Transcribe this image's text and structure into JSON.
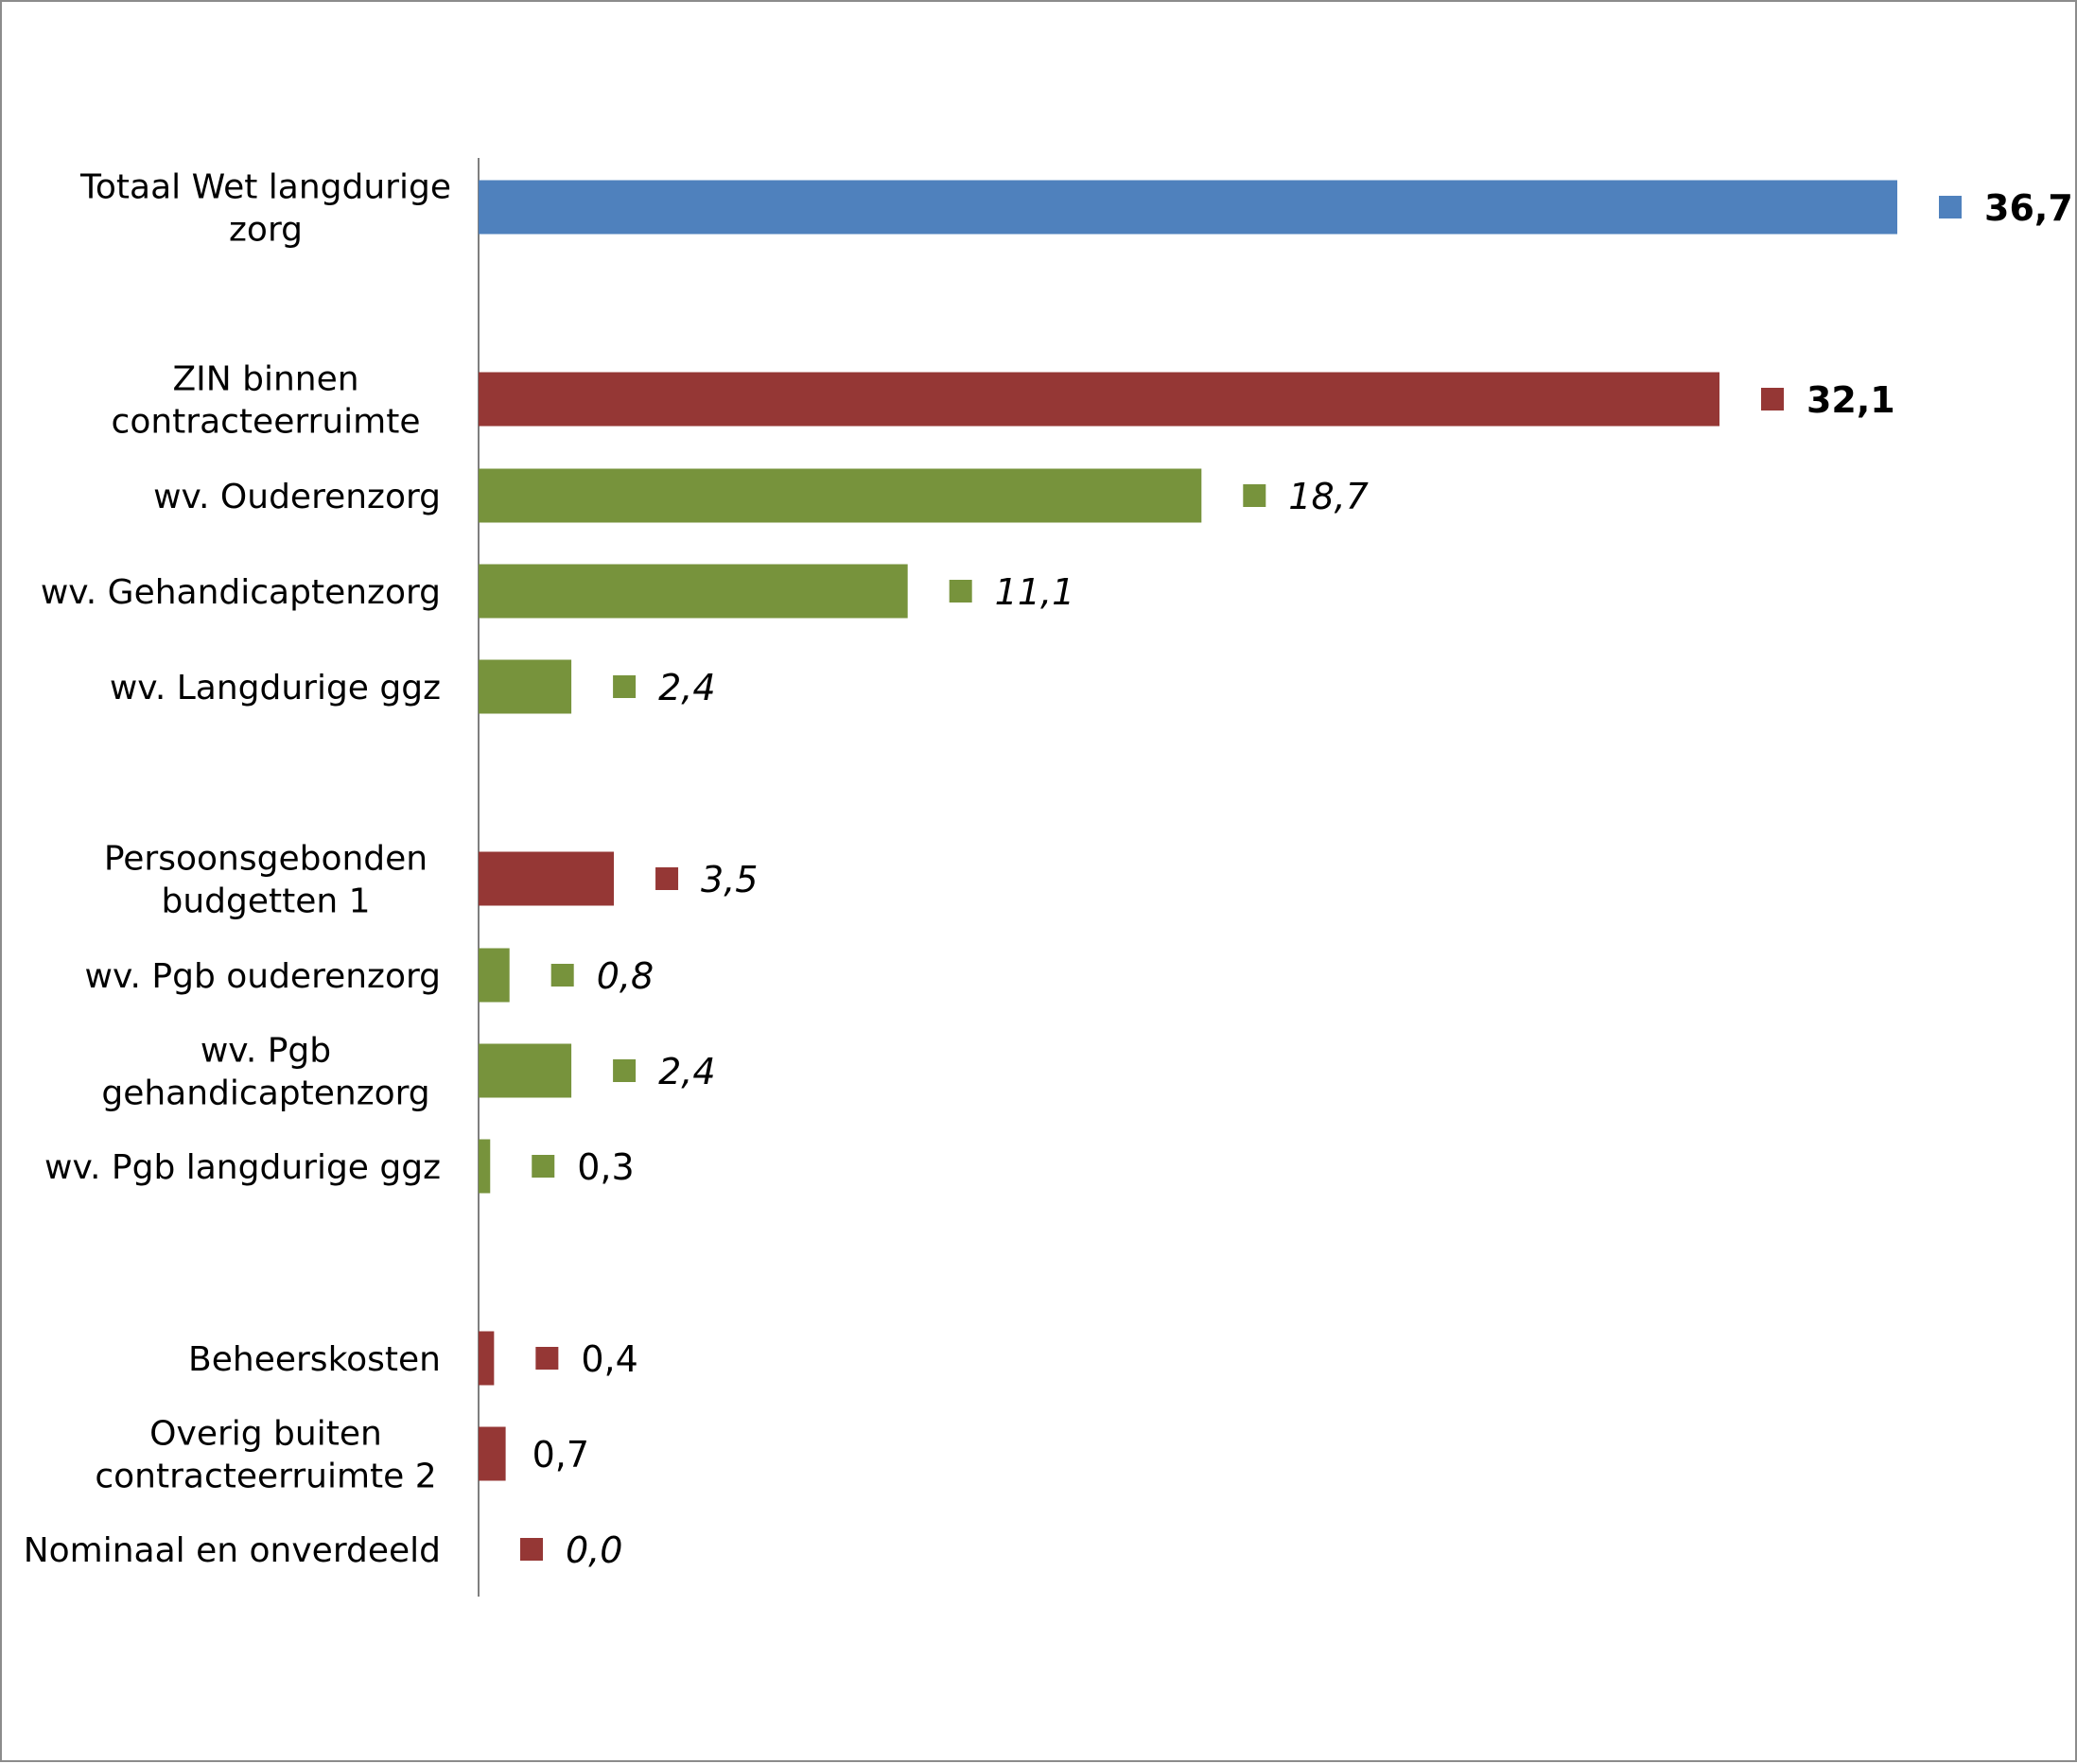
{
  "colors": {
    "total": "#4F81BD",
    "main": "#953735",
    "sub": "#77933C",
    "axis": "#7f7f7f"
  },
  "chart_data": {
    "type": "bar",
    "orientation": "horizontal",
    "title": "",
    "xlabel": "",
    "ylabel": "",
    "xlim": [
      0,
      36.7
    ],
    "grid": false,
    "legend": "none",
    "bars": [
      {
        "label": [
          "Totaal Wet langdurige",
          "zorg"
        ],
        "value": 36.7,
        "display": "36,7",
        "kind": "total",
        "style": "bold",
        "marker": true
      },
      {
        "label": [
          "ZIN binnen",
          "contracteerruimte"
        ],
        "value": 32.1,
        "display": "32,1",
        "kind": "main",
        "style": "bold",
        "marker": true
      },
      {
        "label": [
          "wv. Ouderenzorg"
        ],
        "value": 18.7,
        "display": "18,7",
        "kind": "sub",
        "style": "italic",
        "marker": true
      },
      {
        "label": [
          "wv. Gehandicaptenzorg"
        ],
        "value": 11.1,
        "display": "11,1",
        "kind": "sub",
        "style": "italic",
        "marker": true
      },
      {
        "label": [
          "wv. Langdurige ggz"
        ],
        "value": 2.4,
        "display": "2,4",
        "kind": "sub",
        "style": "italic",
        "marker": true
      },
      {
        "label": [
          "Persoonsgebonden",
          "budgetten 1"
        ],
        "value": 3.5,
        "display": "3,5",
        "kind": "main",
        "style": "italic",
        "marker": true
      },
      {
        "label": [
          "wv. Pgb ouderenzorg"
        ],
        "value": 0.8,
        "display": "0,8",
        "kind": "sub",
        "style": "italic",
        "marker": true
      },
      {
        "label": [
          "wv. Pgb",
          "gehandicaptenzorg"
        ],
        "value": 2.4,
        "display": "2,4",
        "kind": "sub",
        "style": "italic",
        "marker": true
      },
      {
        "label": [
          "wv. Pgb langdurige ggz"
        ],
        "value": 0.3,
        "display": "0,3",
        "kind": "sub",
        "style": "normal",
        "marker": true
      },
      {
        "label": [
          "Beheerskosten"
        ],
        "value": 0.4,
        "display": "0,4",
        "kind": "main",
        "style": "normal",
        "marker": true
      },
      {
        "label": [
          "Overig buiten",
          "contracteerruimte 2"
        ],
        "value": 0.7,
        "display": "0,7",
        "kind": "main",
        "style": "normal",
        "marker": false
      },
      {
        "label": [
          "Nominaal en onverdeeld"
        ],
        "value": 0.0,
        "display": "0,0",
        "kind": "main",
        "style": "italic",
        "marker": true
      }
    ]
  }
}
